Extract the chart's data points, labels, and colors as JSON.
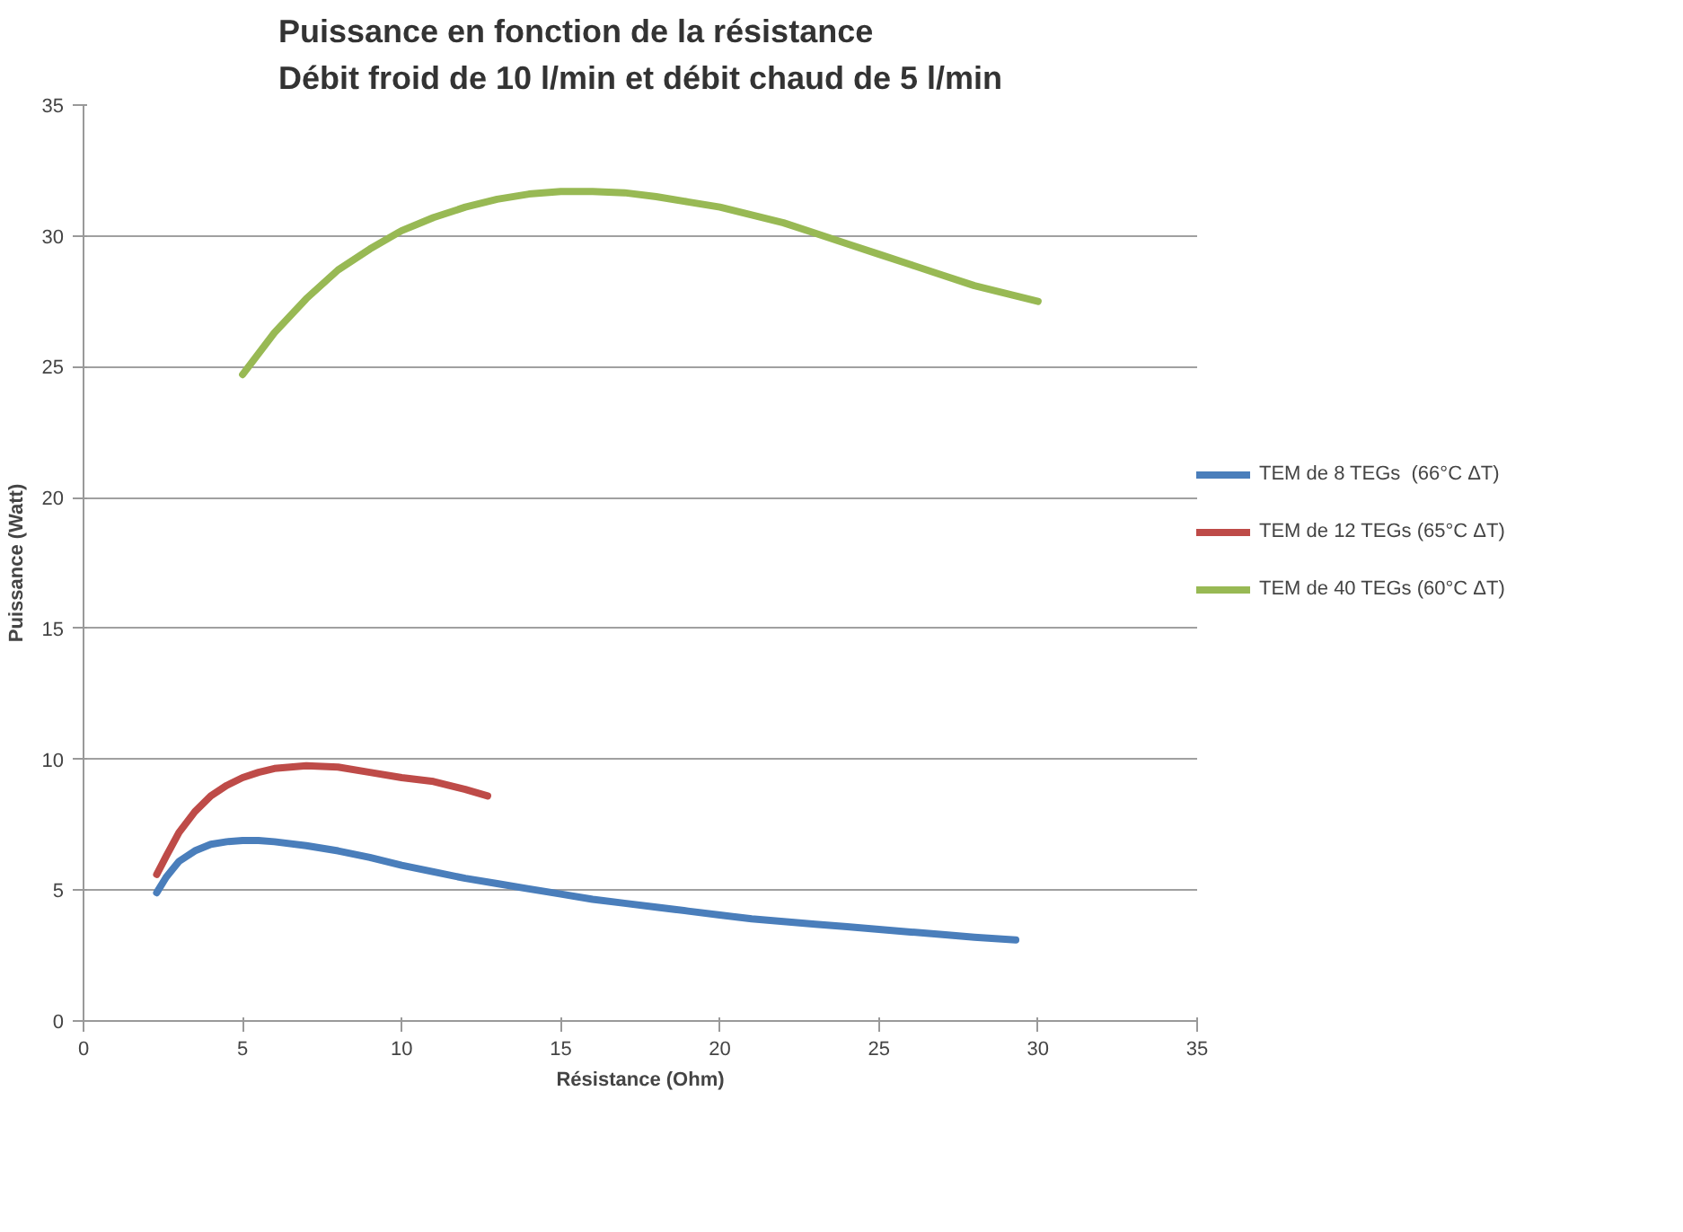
{
  "chart_data": {
    "type": "line",
    "title": "Puissance en fonction de la résistance\nDébit froid de 10 l/min et débit chaud de 5 l/min",
    "xlabel": "Résistance (Ohm)",
    "ylabel": "Puissance (Watt)",
    "xlim": [
      0,
      35
    ],
    "ylim": [
      0,
      35
    ],
    "xticks": [
      0,
      5,
      10,
      15,
      20,
      25,
      30,
      35
    ],
    "yticks": [
      0,
      5,
      10,
      15,
      20,
      25,
      30,
      35
    ],
    "grid": "y",
    "legend": "right",
    "line_style": "solid",
    "marker": "none",
    "series": [
      {
        "name": "TEM de 8 TEGs  (66°C ΔT)",
        "color": "#4a7ebb",
        "x": [
          2.3,
          2.6,
          3,
          3.5,
          4,
          4.5,
          5,
          5.5,
          6,
          7,
          8,
          9,
          10,
          11,
          12,
          13,
          14,
          15,
          16,
          17,
          18,
          19,
          20,
          21,
          22,
          23,
          24,
          25,
          26,
          27,
          28,
          29.3
        ],
        "values": [
          4.9,
          5.5,
          6.1,
          6.5,
          6.75,
          6.85,
          6.9,
          6.9,
          6.85,
          6.7,
          6.5,
          6.25,
          5.95,
          5.7,
          5.45,
          5.25,
          5.05,
          4.85,
          4.65,
          4.5,
          4.35,
          4.2,
          4.05,
          3.9,
          3.8,
          3.7,
          3.6,
          3.5,
          3.4,
          3.3,
          3.2,
          3.1
        ]
      },
      {
        "name": "TEM de 12 TEGs (65°C ΔT)",
        "color": "#be4b48",
        "x": [
          2.3,
          2.6,
          3,
          3.5,
          4,
          4.5,
          5,
          5.5,
          6,
          7,
          8,
          9,
          10,
          11,
          12,
          12.7
        ],
        "values": [
          5.6,
          6.3,
          7.2,
          8.0,
          8.6,
          9.0,
          9.3,
          9.5,
          9.65,
          9.75,
          9.7,
          9.5,
          9.3,
          9.15,
          8.85,
          8.6
        ]
      },
      {
        "name": "TEM de 40 TEGs (60°C ΔT)",
        "color": "#98b954",
        "x": [
          5,
          6,
          7,
          8,
          9,
          10,
          11,
          12,
          13,
          14,
          15,
          16,
          17,
          18,
          19,
          20,
          21,
          22,
          23,
          24,
          25,
          26,
          27,
          28,
          29,
          30
        ],
        "values": [
          24.7,
          26.3,
          27.6,
          28.7,
          29.5,
          30.2,
          30.7,
          31.1,
          31.4,
          31.6,
          31.7,
          31.7,
          31.65,
          31.5,
          31.3,
          31.1,
          30.8,
          30.5,
          30.1,
          29.7,
          29.3,
          28.9,
          28.5,
          28.1,
          27.8,
          27.5
        ]
      }
    ]
  }
}
